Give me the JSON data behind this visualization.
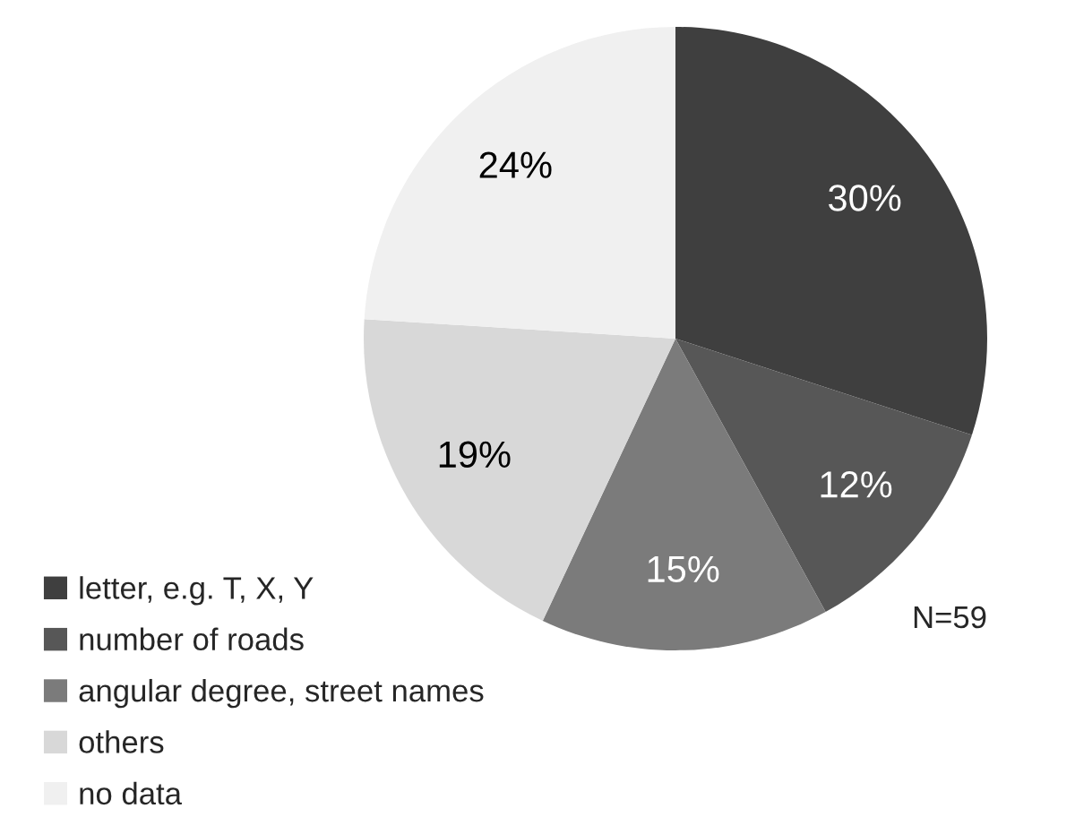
{
  "chart_data": {
    "type": "pie",
    "categories": [
      "letter, e.g. T, X, Y",
      "number of roads",
      "angular degree, street names",
      "others",
      "no data"
    ],
    "values": [
      30,
      12,
      15,
      19,
      24
    ],
    "colors": [
      "#3f3f3f",
      "#575757",
      "#7b7b7b",
      "#d8d8d8",
      "#f0f0f0"
    ],
    "value_labels": [
      "30%",
      "12%",
      "15%",
      "19%",
      "24%"
    ],
    "legend": "bottom left",
    "annotations": [
      "N=59"
    ]
  }
}
